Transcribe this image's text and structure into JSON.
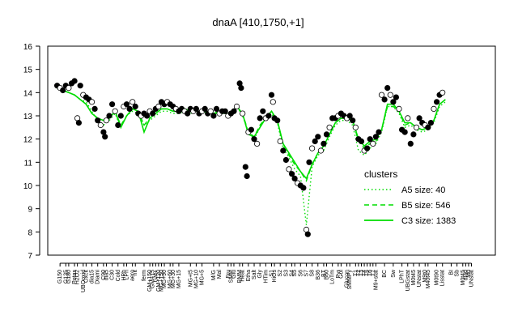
{
  "chart_data": {
    "type": "line",
    "title": "dnaA [410,1750,+1]",
    "xlabel": "",
    "ylabel": "",
    "ylim": [
      7,
      16
    ],
    "yticks": [
      7,
      8,
      9,
      10,
      11,
      12,
      13,
      14,
      15,
      16
    ],
    "xlim": [
      0,
      150
    ],
    "x_tick_labels": [
      {
        "x": 2,
        "label": "G150"
      },
      {
        "x": 4,
        "label": "G135"
      },
      {
        "x": 5,
        "label": "G180"
      },
      {
        "x": 7,
        "label": "Potas"
      },
      {
        "x": 8,
        "label": "H2O2"
      },
      {
        "x": 10,
        "label": "UBOoxid"
      },
      {
        "x": 11,
        "label": "Oxcit"
      },
      {
        "x": 13,
        "label": "dia15"
      },
      {
        "x": 15,
        "label": "Diami"
      },
      {
        "x": 17,
        "label": "C90"
      },
      {
        "x": 18,
        "label": "dia5"
      },
      {
        "x": 20,
        "label": "C30"
      },
      {
        "x": 22,
        "label": "Cold"
      },
      {
        "x": 24,
        "label": "HPh"
      },
      {
        "x": 25,
        "label": "LPh"
      },
      {
        "x": 27,
        "label": "aero"
      },
      {
        "x": 28,
        "label": "nit"
      },
      {
        "x": 31,
        "label": "ferm"
      },
      {
        "x": 33,
        "label": "GM+150"
      },
      {
        "x": 34,
        "label": "GM+15"
      },
      {
        "x": 35,
        "label": "GM+"
      },
      {
        "x": 36,
        "label": "GM+120"
      },
      {
        "x": 37,
        "label": "MG+150"
      },
      {
        "x": 38,
        "label": "MG+90"
      },
      {
        "x": 40,
        "label": "MG+60"
      },
      {
        "x": 41,
        "label": "MG+30"
      },
      {
        "x": 43,
        "label": "MG+15"
      },
      {
        "x": 47,
        "label": "MG+t5"
      },
      {
        "x": 49,
        "label": "MG+10"
      },
      {
        "x": 51,
        "label": "MG+5"
      },
      {
        "x": 55,
        "label": "M/G"
      },
      {
        "x": 57,
        "label": "Mal"
      },
      {
        "x": 60,
        "label": "Fru"
      },
      {
        "x": 61,
        "label": "SMM"
      },
      {
        "x": 62,
        "label": "Glu"
      },
      {
        "x": 64,
        "label": "BMM"
      },
      {
        "x": 65,
        "label": "Heat"
      },
      {
        "x": 67,
        "label": "Etha"
      },
      {
        "x": 69,
        "label": "Salt"
      },
      {
        "x": 71,
        "label": "Gly"
      },
      {
        "x": 73,
        "label": "HTim"
      },
      {
        "x": 75,
        "label": "S1"
      },
      {
        "x": 76,
        "label": "HiOs"
      },
      {
        "x": 78,
        "label": "S2"
      },
      {
        "x": 80,
        "label": "S3"
      },
      {
        "x": 82,
        "label": "S4"
      },
      {
        "x": 83,
        "label": "S5"
      },
      {
        "x": 85,
        "label": "S6"
      },
      {
        "x": 87,
        "label": "S7"
      },
      {
        "x": 89,
        "label": "S8"
      },
      {
        "x": 91,
        "label": "B36"
      },
      {
        "x": 93,
        "label": "BT"
      },
      {
        "x": 94,
        "label": "B60"
      },
      {
        "x": 96,
        "label": "LoTm"
      },
      {
        "x": 98,
        "label": "Pyr"
      },
      {
        "x": 99,
        "label": "Gol"
      },
      {
        "x": 101,
        "label": "Glucon"
      },
      {
        "x": 102,
        "label": "SMMPy"
      },
      {
        "x": 104,
        "label": "T1"
      },
      {
        "x": 105,
        "label": "T2"
      },
      {
        "x": 106,
        "label": "T3"
      },
      {
        "x": 107,
        "label": "T4"
      },
      {
        "x": 108,
        "label": "T5"
      },
      {
        "x": 109,
        "label": "T6"
      },
      {
        "x": 110,
        "label": "T7"
      },
      {
        "x": 111,
        "label": "M9+stat"
      },
      {
        "x": 114,
        "label": "BC"
      },
      {
        "x": 117,
        "label": "Sw"
      },
      {
        "x": 120,
        "label": "LPhT"
      },
      {
        "x": 122,
        "label": "UBGstat"
      },
      {
        "x": 124,
        "label": "M0t45"
      },
      {
        "x": 126,
        "label": "UNstat"
      },
      {
        "x": 128,
        "label": "M9t0"
      },
      {
        "x": 129,
        "label": "M40t45"
      },
      {
        "x": 132,
        "label": "M0t90"
      },
      {
        "x": 134,
        "label": "Lisstat"
      },
      {
        "x": 137,
        "label": "BI"
      },
      {
        "x": 139,
        "label": "Sb"
      },
      {
        "x": 141,
        "label": "M0t45"
      },
      {
        "x": 142,
        "label": "dia0"
      },
      {
        "x": 143,
        "label": "M0"
      },
      {
        "x": 144,
        "label": "UNstat"
      }
    ],
    "points": [
      {
        "x": 1,
        "y": 14.3
      },
      {
        "x": 2,
        "y": 14.2
      },
      {
        "x": 3,
        "y": 14.1
      },
      {
        "x": 4,
        "y": 14.3
      },
      {
        "x": 5,
        "y": 14.2
      },
      {
        "x": 6,
        "y": 14.4
      },
      {
        "x": 7,
        "y": 14.5
      },
      {
        "x": 8,
        "y": 12.9
      },
      {
        "x": 8.5,
        "y": 12.7
      },
      {
        "x": 9,
        "y": 14.3
      },
      {
        "x": 10,
        "y": 13.9
      },
      {
        "x": 11,
        "y": 13.8
      },
      {
        "x": 12,
        "y": 13.7
      },
      {
        "x": 13,
        "y": 13.6
      },
      {
        "x": 14,
        "y": 13.3
      },
      {
        "x": 15,
        "y": 12.8
      },
      {
        "x": 16,
        "y": 12.6
      },
      {
        "x": 17,
        "y": 12.3
      },
      {
        "x": 17.5,
        "y": 12.1
      },
      {
        "x": 18,
        "y": 12.8
      },
      {
        "x": 19,
        "y": 13.0
      },
      {
        "x": 20,
        "y": 13.5
      },
      {
        "x": 21,
        "y": 13.2
      },
      {
        "x": 22,
        "y": 12.6
      },
      {
        "x": 23,
        "y": 13.0
      },
      {
        "x": 24,
        "y": 13.4
      },
      {
        "x": 25,
        "y": 13.5
      },
      {
        "x": 26,
        "y": 13.3
      },
      {
        "x": 27,
        "y": 13.6
      },
      {
        "x": 28,
        "y": 13.4
      },
      {
        "x": 29,
        "y": 13.1
      },
      {
        "x": 30,
        "y": 13.0
      },
      {
        "x": 31,
        "y": 13.1
      },
      {
        "x": 32,
        "y": 13.0
      },
      {
        "x": 33,
        "y": 13.2
      },
      {
        "x": 34,
        "y": 13.1
      },
      {
        "x": 35,
        "y": 13.3
      },
      {
        "x": 36,
        "y": 13.4
      },
      {
        "x": 37,
        "y": 13.6
      },
      {
        "x": 38,
        "y": 13.5
      },
      {
        "x": 39,
        "y": 13.6
      },
      {
        "x": 40,
        "y": 13.5
      },
      {
        "x": 41,
        "y": 13.4
      },
      {
        "x": 42,
        "y": 13.3
      },
      {
        "x": 43,
        "y": 13.2
      },
      {
        "x": 44,
        "y": 13.3
      },
      {
        "x": 45,
        "y": 13.2
      },
      {
        "x": 46,
        "y": 13.1
      },
      {
        "x": 47,
        "y": 13.3
      },
      {
        "x": 48,
        "y": 13.2
      },
      {
        "x": 49,
        "y": 13.3
      },
      {
        "x": 50,
        "y": 13.1
      },
      {
        "x": 51,
        "y": 13.2
      },
      {
        "x": 52,
        "y": 13.3
      },
      {
        "x": 53,
        "y": 13.1
      },
      {
        "x": 54,
        "y": 13.2
      },
      {
        "x": 55,
        "y": 13.0
      },
      {
        "x": 56,
        "y": 13.3
      },
      {
        "x": 57,
        "y": 13.1
      },
      {
        "x": 58,
        "y": 13.2
      },
      {
        "x": 59,
        "y": 13.2
      },
      {
        "x": 60,
        "y": 13.0
      },
      {
        "x": 61,
        "y": 13.1
      },
      {
        "x": 62,
        "y": 13.2
      },
      {
        "x": 63,
        "y": 13.4
      },
      {
        "x": 64,
        "y": 14.4
      },
      {
        "x": 64.5,
        "y": 14.2
      },
      {
        "x": 65,
        "y": 13.1
      },
      {
        "x": 66,
        "y": 10.8
      },
      {
        "x": 66.5,
        "y": 10.4
      },
      {
        "x": 67,
        "y": 12.3
      },
      {
        "x": 68,
        "y": 12.4
      },
      {
        "x": 69,
        "y": 12.0
      },
      {
        "x": 70,
        "y": 11.8
      },
      {
        "x": 71,
        "y": 12.9
      },
      {
        "x": 72,
        "y": 13.2
      },
      {
        "x": 73,
        "y": 12.9
      },
      {
        "x": 74,
        "y": 13.0
      },
      {
        "x": 75,
        "y": 13.9
      },
      {
        "x": 75.5,
        "y": 13.6
      },
      {
        "x": 76,
        "y": 12.9
      },
      {
        "x": 77,
        "y": 12.8
      },
      {
        "x": 78,
        "y": 11.9
      },
      {
        "x": 79,
        "y": 11.5
      },
      {
        "x": 80,
        "y": 11.1
      },
      {
        "x": 81,
        "y": 10.7
      },
      {
        "x": 82,
        "y": 10.5
      },
      {
        "x": 83,
        "y": 10.3
      },
      {
        "x": 84,
        "y": 10.1
      },
      {
        "x": 85,
        "y": 10.0
      },
      {
        "x": 86,
        "y": 9.9
      },
      {
        "x": 87,
        "y": 8.1
      },
      {
        "x": 87.5,
        "y": 7.9
      },
      {
        "x": 88,
        "y": 11.0
      },
      {
        "x": 89,
        "y": 11.6
      },
      {
        "x": 90,
        "y": 11.9
      },
      {
        "x": 91,
        "y": 12.1
      },
      {
        "x": 92,
        "y": 11.5
      },
      {
        "x": 93,
        "y": 11.8
      },
      {
        "x": 94,
        "y": 12.2
      },
      {
        "x": 95,
        "y": 12.5
      },
      {
        "x": 96,
        "y": 12.9
      },
      {
        "x": 97,
        "y": 12.9
      },
      {
        "x": 98,
        "y": 13.0
      },
      {
        "x": 99,
        "y": 13.1
      },
      {
        "x": 100,
        "y": 13.0
      },
      {
        "x": 101,
        "y": 12.9
      },
      {
        "x": 102,
        "y": 13.0
      },
      {
        "x": 103,
        "y": 12.8
      },
      {
        "x": 104,
        "y": 12.5
      },
      {
        "x": 105,
        "y": 12.0
      },
      {
        "x": 106,
        "y": 11.9
      },
      {
        "x": 107,
        "y": 11.5
      },
      {
        "x": 108,
        "y": 11.6
      },
      {
        "x": 109,
        "y": 12.0
      },
      {
        "x": 110,
        "y": 11.8
      },
      {
        "x": 111,
        "y": 12.1
      },
      {
        "x": 112,
        "y": 12.3
      },
      {
        "x": 113,
        "y": 13.9
      },
      {
        "x": 114,
        "y": 13.7
      },
      {
        "x": 115,
        "y": 14.2
      },
      {
        "x": 116,
        "y": 13.9
      },
      {
        "x": 117,
        "y": 13.6
      },
      {
        "x": 118,
        "y": 13.8
      },
      {
        "x": 119,
        "y": 13.3
      },
      {
        "x": 120,
        "y": 12.4
      },
      {
        "x": 121,
        "y": 12.3
      },
      {
        "x": 122,
        "y": 12.9
      },
      {
        "x": 123,
        "y": 11.8
      },
      {
        "x": 124,
        "y": 12.2
      },
      {
        "x": 125,
        "y": 12.5
      },
      {
        "x": 126,
        "y": 12.9
      },
      {
        "x": 127,
        "y": 12.7
      },
      {
        "x": 128,
        "y": 12.6
      },
      {
        "x": 129,
        "y": 12.5
      },
      {
        "x": 130,
        "y": 12.7
      },
      {
        "x": 131,
        "y": 13.3
      },
      {
        "x": 132,
        "y": 13.6
      },
      {
        "x": 133,
        "y": 13.9
      },
      {
        "x": 134,
        "y": 14.0
      }
    ],
    "lines": {
      "x": [
        1,
        3,
        5,
        7,
        9,
        11,
        13,
        15,
        17,
        19,
        21,
        23,
        25,
        27,
        29,
        31,
        33,
        35,
        37,
        39,
        41,
        43,
        45,
        47,
        49,
        51,
        53,
        55,
        57,
        59,
        61,
        63,
        65,
        67,
        69,
        71,
        73,
        75,
        77,
        79,
        81,
        83,
        85,
        87,
        89,
        91,
        93,
        95,
        97,
        99,
        101,
        103,
        105,
        107,
        109,
        111,
        113,
        115,
        117,
        119,
        121,
        123,
        125,
        127,
        129,
        131,
        133,
        135
      ],
      "series": [
        {
          "name": "A5 size: 40",
          "style": "dotted",
          "y": [
            14.2,
            14.1,
            14.0,
            13.9,
            13.7,
            13.6,
            13.2,
            12.8,
            12.6,
            12.8,
            13.1,
            12.5,
            13.0,
            13.2,
            13.1,
            12.6,
            12.8,
            13.0,
            13.2,
            13.2,
            13.1,
            13.1,
            13.2,
            13.1,
            13.2,
            13.2,
            13.1,
            13.1,
            13.1,
            13.1,
            13.1,
            13.4,
            13.0,
            12.3,
            12.0,
            12.5,
            12.9,
            13.1,
            12.7,
            11.6,
            11.2,
            10.7,
            10.4,
            8.3,
            10.8,
            11.3,
            11.5,
            12.1,
            12.6,
            12.8,
            12.8,
            12.6,
            11.5,
            11.3,
            11.6,
            11.8,
            12.3,
            13.4,
            13.4,
            13.1,
            12.5,
            12.6,
            12.4,
            12.3,
            12.4,
            12.7,
            13.4,
            13.6
          ]
        },
        {
          "name": "B5 size: 546",
          "style": "dashed",
          "y": [
            14.2,
            14.1,
            14.0,
            13.9,
            13.7,
            13.5,
            13.1,
            12.9,
            12.8,
            12.9,
            13.2,
            12.6,
            13.0,
            13.3,
            13.2,
            12.6,
            12.9,
            13.1,
            13.3,
            13.3,
            13.2,
            13.2,
            13.3,
            13.2,
            13.2,
            13.2,
            13.2,
            13.1,
            13.2,
            13.1,
            13.1,
            13.4,
            13.1,
            12.3,
            12.1,
            12.6,
            12.9,
            13.2,
            12.8,
            11.7,
            11.3,
            10.9,
            10.6,
            10.2,
            10.9,
            11.4,
            11.7,
            12.2,
            12.7,
            12.9,
            12.9,
            12.8,
            11.9,
            11.6,
            11.8,
            11.9,
            12.4,
            13.4,
            13.4,
            13.2,
            12.6,
            12.7,
            12.5,
            12.4,
            12.5,
            12.8,
            13.5,
            13.7
          ]
        },
        {
          "name": "C3 size: 1383",
          "style": "solid",
          "y": [
            14.2,
            14.1,
            14.0,
            13.9,
            13.7,
            13.5,
            13.1,
            12.9,
            12.8,
            12.9,
            13.2,
            12.5,
            13.0,
            13.3,
            13.2,
            12.3,
            12.9,
            13.1,
            13.3,
            13.3,
            13.2,
            13.2,
            13.3,
            13.2,
            13.2,
            13.2,
            13.2,
            13.1,
            13.2,
            13.1,
            13.1,
            13.4,
            13.1,
            12.2,
            12.1,
            12.5,
            12.9,
            13.2,
            12.8,
            11.8,
            11.4,
            11.0,
            10.6,
            10.3,
            10.9,
            11.4,
            11.7,
            12.2,
            12.7,
            12.9,
            12.9,
            12.8,
            12.0,
            11.7,
            11.9,
            12.0,
            12.4,
            13.5,
            13.5,
            13.2,
            12.7,
            12.7,
            12.5,
            12.4,
            12.5,
            12.8,
            13.5,
            13.7
          ]
        }
      ]
    },
    "legend": {
      "title": "clusters",
      "placement": "bottom-right",
      "entries": [
        "A5 size: 40",
        "B5 size: 546",
        "C3 size: 1383"
      ]
    },
    "colors": {
      "line": "#00dd00",
      "point_fill_dark": "#000000",
      "point_fill_light": "#ffffff"
    },
    "grid": false
  }
}
